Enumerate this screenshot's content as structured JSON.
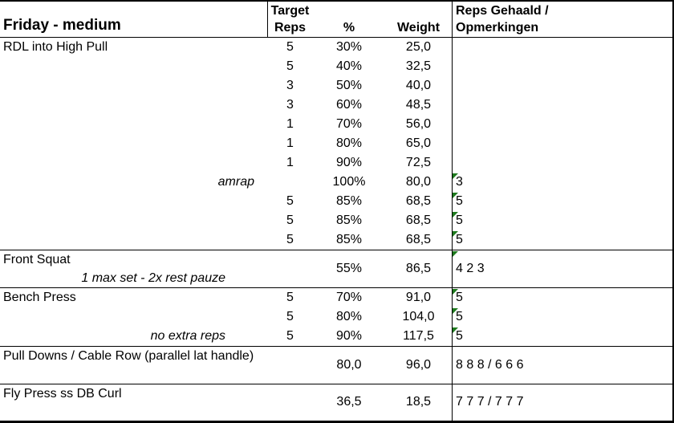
{
  "header": {
    "title": "Friday - medium",
    "target_line1": "Target",
    "target_line2": "Reps",
    "pct": "%",
    "weight": "Weight",
    "notes_line1": "Reps Gehaald /",
    "notes_line2": "Opmerkingen"
  },
  "colors": {
    "marker_green": "#1e7a1e",
    "border": "#000000"
  },
  "sections": [
    {
      "name": "RDL into High Pull",
      "type": "rows",
      "rows": [
        {
          "reps": "5",
          "pct": "30%",
          "weight": "25,0",
          "result": "",
          "marker": false
        },
        {
          "reps": "5",
          "pct": "40%",
          "weight": "32,5",
          "result": "",
          "marker": false
        },
        {
          "reps": "3",
          "pct": "50%",
          "weight": "40,0",
          "result": "",
          "marker": false
        },
        {
          "reps": "3",
          "pct": "60%",
          "weight": "48,5",
          "result": "",
          "marker": false
        },
        {
          "reps": "1",
          "pct": "70%",
          "weight": "56,0",
          "result": "",
          "marker": false
        },
        {
          "reps": "1",
          "pct": "80%",
          "weight": "65,0",
          "result": "",
          "marker": false
        },
        {
          "reps": "1",
          "pct": "90%",
          "weight": "72,5",
          "result": "",
          "marker": false
        },
        {
          "note": "amrap",
          "note_pos": "near",
          "reps": "",
          "pct": "100%",
          "weight": "80,0",
          "result": "3",
          "marker": true
        },
        {
          "reps": "5",
          "pct": "85%",
          "weight": "68,5",
          "result": "5",
          "marker": true
        },
        {
          "reps": "5",
          "pct": "85%",
          "weight": "68,5",
          "result": "5",
          "marker": true
        },
        {
          "reps": "5",
          "pct": "85%",
          "weight": "68,5",
          "result": "5",
          "marker": true
        }
      ]
    },
    {
      "name": "Front Squat",
      "type": "merged",
      "note": "1 max set - 2x rest pauze",
      "note_pos": "far",
      "reps": "",
      "pct": "55%",
      "weight": "86,5",
      "result": "4 2 3",
      "marker": true
    },
    {
      "name": "Bench Press",
      "type": "rows",
      "rows": [
        {
          "reps": "5",
          "pct": "70%",
          "weight": "91,0",
          "result": "5",
          "marker": true
        },
        {
          "reps": "5",
          "pct": "80%",
          "weight": "104,0",
          "result": "5",
          "marker": true
        },
        {
          "note": "no extra reps",
          "note_pos": "far",
          "reps": "5",
          "pct": "90%",
          "weight": "117,5",
          "result": "5",
          "marker": true
        }
      ]
    },
    {
      "name": "Pull Downs / Cable Row (parallel lat handle)",
      "type": "merged",
      "note": "",
      "note_pos": "",
      "reps": "",
      "pct": "80,0",
      "weight": "96,0",
      "result": "8 8 8 / 6 6 6",
      "marker": false
    },
    {
      "name": "Fly Press ss DB Curl",
      "type": "merged",
      "note": "",
      "note_pos": "",
      "reps": "",
      "pct": "36,5",
      "weight": "18,5",
      "result": "7 7 7 / 7 7 7",
      "marker": false
    }
  ]
}
